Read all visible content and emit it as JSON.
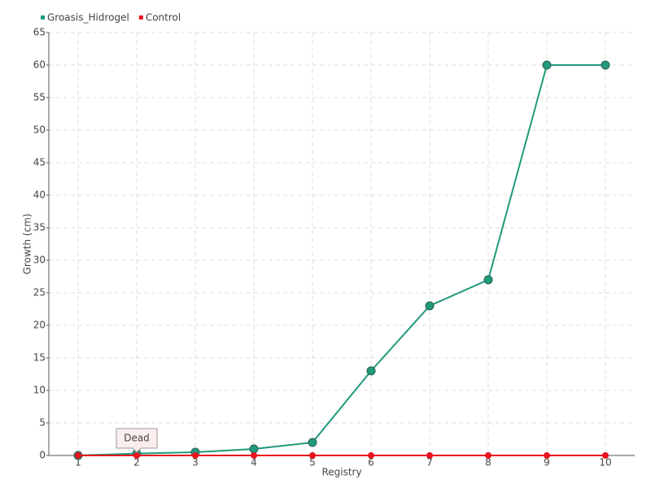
{
  "chart_data": {
    "type": "line",
    "x_label": "Registry",
    "y_label": "Growth (cm)",
    "categories": [
      "1",
      "2",
      "3",
      "4",
      "5",
      "6",
      "7",
      "8",
      "9",
      "10"
    ],
    "series": [
      {
        "name": "Groasis_Hidrogel",
        "color": "#1f9a7c",
        "values": [
          0,
          0.3,
          0.5,
          1,
          2,
          13,
          23,
          27,
          60,
          60
        ]
      },
      {
        "name": "Control",
        "color": "#e8141e",
        "values": [
          0,
          0,
          0,
          0,
          0,
          0,
          0,
          0,
          0,
          0
        ]
      }
    ],
    "annotations": [
      {
        "text": "Dead",
        "x": "2"
      }
    ],
    "ylim": [
      0,
      65
    ],
    "yticks": [
      0,
      5,
      10,
      15,
      20,
      25,
      30,
      35,
      40,
      45,
      50,
      55,
      60,
      65
    ],
    "grid": true,
    "legend": "top-left"
  }
}
